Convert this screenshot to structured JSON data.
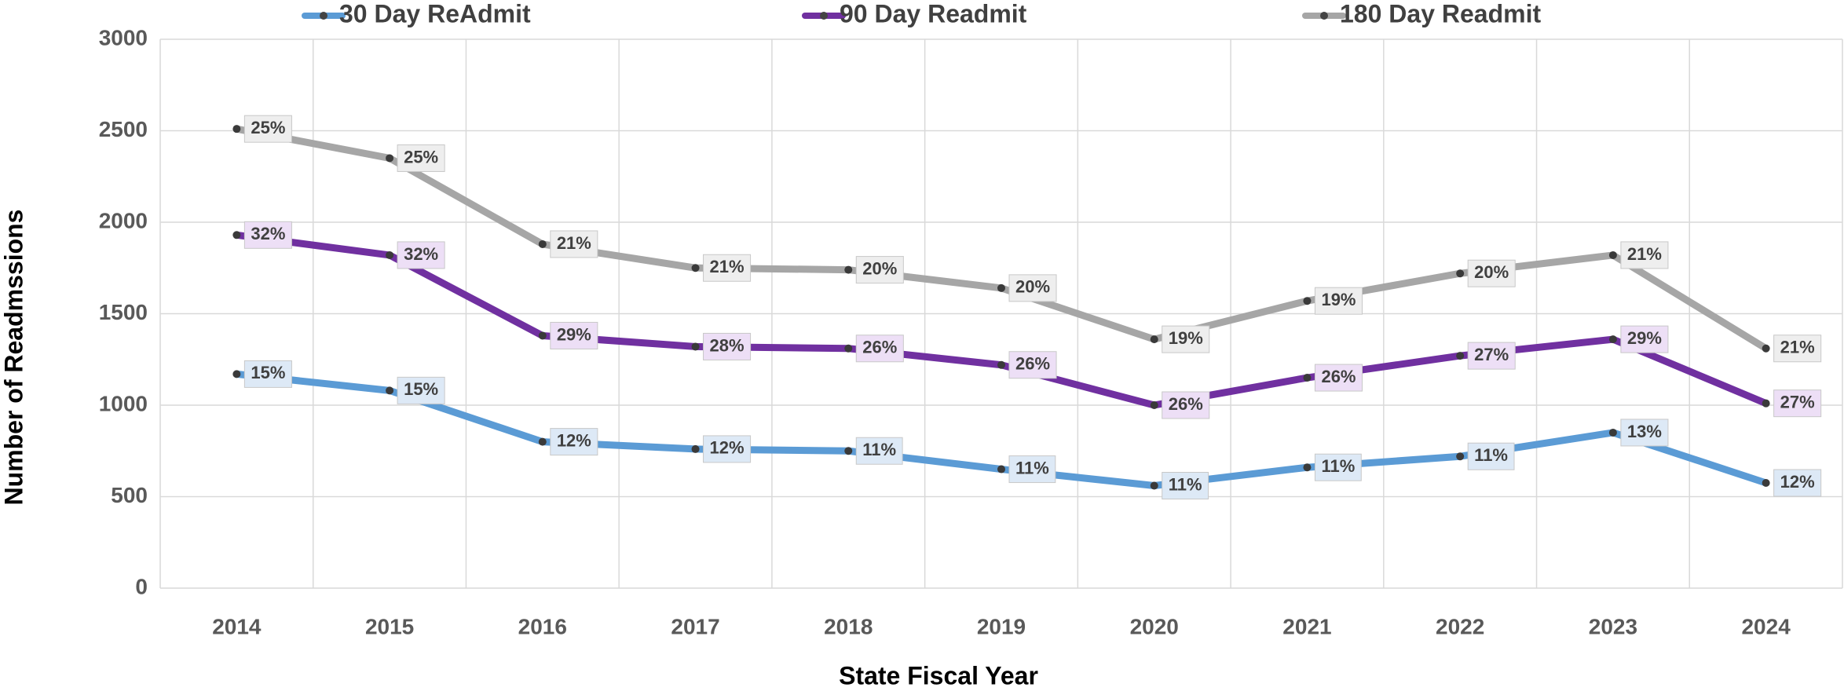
{
  "chart_data": {
    "type": "line",
    "x_label": "State Fiscal Year",
    "y_label": "Number of Readmssions",
    "categories": [
      "2014",
      "2015",
      "2016",
      "2017",
      "2018",
      "2019",
      "2020",
      "2021",
      "2022",
      "2023",
      "2024"
    ],
    "series": [
      {
        "name": "30 Day ReAdmit",
        "color": "#5b9bd5",
        "label_fill": "#dde9f6",
        "values": [
          1170,
          1080,
          800,
          760,
          750,
          650,
          560,
          660,
          720,
          850,
          575
        ],
        "percent_labels": [
          "15%",
          "15%",
          "12%",
          "12%",
          "11%",
          "11%",
          "11%",
          "11%",
          "11%",
          "13%",
          "12%"
        ]
      },
      {
        "name": "90 Day Readmit",
        "color": "#7030a0",
        "label_fill": "#eddff6",
        "values": [
          1930,
          1820,
          1380,
          1320,
          1310,
          1220,
          1000,
          1150,
          1270,
          1360,
          1010
        ],
        "percent_labels": [
          "32%",
          "32%",
          "29%",
          "28%",
          "26%",
          "26%",
          "26%",
          "26%",
          "27%",
          "29%",
          "27%"
        ]
      },
      {
        "name": "180 Day Readmit",
        "color": "#a6a6a6",
        "label_fill": "#eeeeee",
        "values": [
          2510,
          2350,
          1880,
          1750,
          1740,
          1640,
          1360,
          1570,
          1720,
          1820,
          1310
        ],
        "percent_labels": [
          "25%",
          "25%",
          "21%",
          "21%",
          "20%",
          "20%",
          "19%",
          "19%",
          "20%",
          "21%",
          "21%"
        ]
      }
    ],
    "ylim": [
      0,
      3000
    ],
    "yticks": [
      0,
      500,
      1000,
      1500,
      2000,
      2500,
      3000
    ],
    "grid": true,
    "legend": "top"
  }
}
